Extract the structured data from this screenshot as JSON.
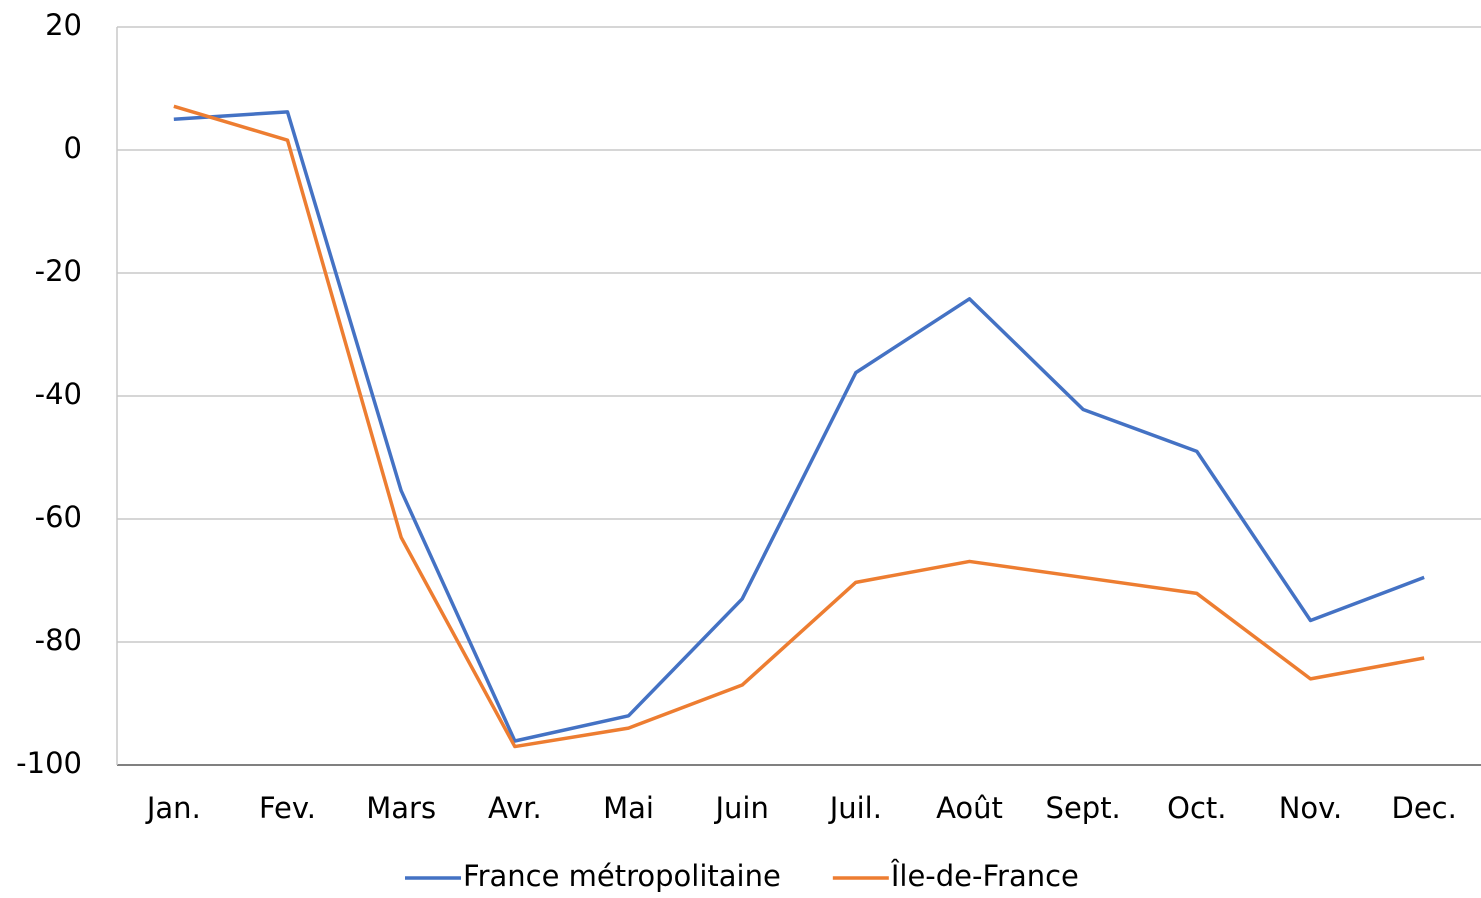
{
  "chart_data": {
    "type": "line",
    "categories": [
      "Jan.",
      "Fev.",
      "Mars",
      "Avr.",
      "Mai",
      "Juin",
      "Juil.",
      "Août",
      "Sept.",
      "Oct.",
      "Nov.",
      "Dec."
    ],
    "series": [
      {
        "name": "France métropolitaine",
        "color": "#4472c4",
        "values": [
          5,
          6.2,
          -55.4,
          -96.1,
          -92,
          -73,
          -36.2,
          -24.2,
          -42.2,
          -49,
          -76.5,
          -69.5
        ]
      },
      {
        "name": "Île-de-France",
        "color": "#ed7d31",
        "values": [
          7.1,
          1.6,
          -63,
          -97,
          -94,
          -87,
          -70.3,
          -66.9,
          -69.5,
          -72.1,
          -86,
          -82.6
        ]
      }
    ],
    "ylim": [
      -100,
      20
    ],
    "yticks": [
      -100,
      -80,
      -60,
      -40,
      -20,
      0,
      20
    ],
    "grid": true,
    "legend": "bottom"
  }
}
